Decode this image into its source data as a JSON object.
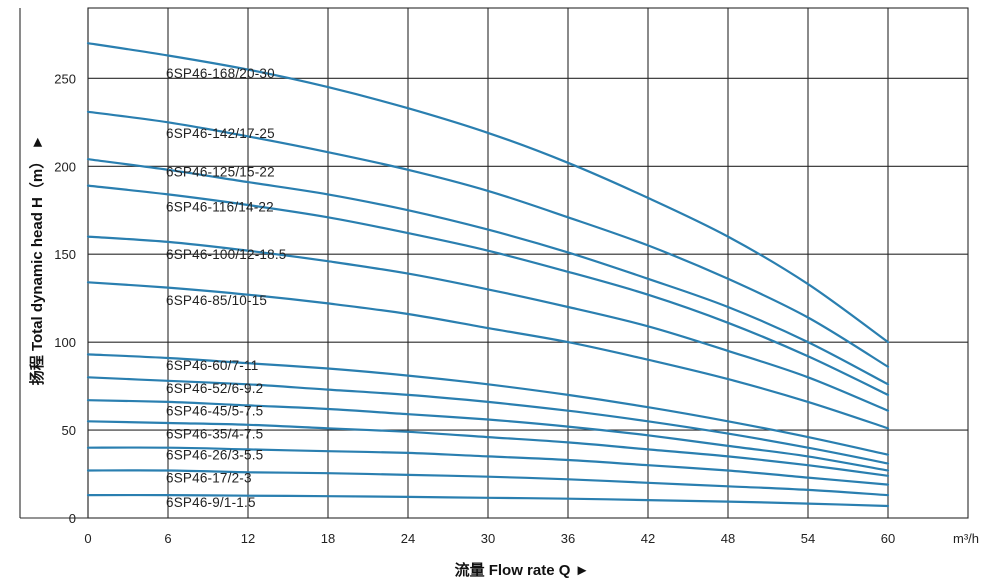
{
  "chart_data": {
    "type": "line",
    "title": "",
    "xlabel": "流量 Flow rate Q ►",
    "ylabel": "扬程 Total dynamic head H（m） ►",
    "x_unit": "m³/h",
    "xlim": [
      0,
      66
    ],
    "ylim": [
      0,
      290
    ],
    "x_ticks": [
      0,
      6,
      12,
      18,
      24,
      30,
      36,
      42,
      48,
      54,
      60
    ],
    "y_ticks": [
      0,
      50,
      100,
      150,
      200,
      250
    ],
    "grid": true,
    "colors": {
      "curve": "#2a7fb0",
      "grid": "#2a2a2a"
    },
    "series": [
      {
        "name": "6SP46-168/20-30",
        "x": [
          0,
          6,
          12,
          18,
          24,
          30,
          36,
          42,
          48,
          54,
          60
        ],
        "y": [
          270,
          263,
          255,
          245,
          233,
          219,
          202,
          182,
          160,
          133,
          100
        ]
      },
      {
        "name": "6SP46-142/17-25",
        "x": [
          0,
          6,
          12,
          18,
          24,
          30,
          36,
          42,
          48,
          54,
          60
        ],
        "y": [
          231,
          225,
          217,
          208,
          198,
          186,
          171,
          155,
          136,
          114,
          86
        ]
      },
      {
        "name": "6SP46-125/15-22",
        "x": [
          0,
          6,
          12,
          18,
          24,
          30,
          36,
          42,
          48,
          54,
          60
        ],
        "y": [
          204,
          198,
          191,
          184,
          175,
          164,
          151,
          136,
          120,
          100,
          76
        ]
      },
      {
        "name": "6SP46-116/14-22",
        "x": [
          0,
          6,
          12,
          18,
          24,
          30,
          36,
          42,
          48,
          54,
          60
        ],
        "y": [
          189,
          184,
          178,
          171,
          162,
          152,
          140,
          127,
          111,
          92,
          70
        ]
      },
      {
        "name": "6SP46-100/12-18.5",
        "x": [
          0,
          6,
          12,
          18,
          24,
          30,
          36,
          42,
          48,
          54,
          60
        ],
        "y": [
          160,
          157,
          152,
          146,
          139,
          130,
          120,
          109,
          95,
          80,
          61
        ]
      },
      {
        "name": "6SP46-85/10-15",
        "x": [
          0,
          6,
          12,
          18,
          24,
          30,
          36,
          42,
          48,
          54,
          60
        ],
        "y": [
          134,
          131,
          127,
          122,
          116,
          108,
          100,
          90,
          79,
          66,
          51
        ]
      },
      {
        "name": "6SP46-60/7-11",
        "x": [
          0,
          6,
          12,
          18,
          24,
          30,
          36,
          42,
          48,
          54,
          60
        ],
        "y": [
          93,
          91,
          88,
          85,
          81,
          76,
          70,
          63,
          55,
          46,
          36
        ]
      },
      {
        "name": "6SP46-52/6-9.2",
        "x": [
          0,
          6,
          12,
          18,
          24,
          30,
          36,
          42,
          48,
          54,
          60
        ],
        "y": [
          80,
          78,
          76,
          73,
          70,
          66,
          61,
          55,
          48,
          40,
          31
        ]
      },
      {
        "name": "6SP46-45/5-7.5",
        "x": [
          0,
          6,
          12,
          18,
          24,
          30,
          36,
          42,
          48,
          54,
          60
        ],
        "y": [
          67,
          66,
          64,
          62,
          59,
          56,
          52,
          47,
          41,
          35,
          27
        ]
      },
      {
        "name": "6SP46-35/4-7.5",
        "x": [
          0,
          6,
          12,
          18,
          24,
          30,
          36,
          42,
          48,
          54,
          60
        ],
        "y": [
          55,
          54,
          53,
          51,
          49,
          46,
          43,
          39,
          35,
          30,
          24
        ]
      },
      {
        "name": "6SP46-26/3-5.5",
        "x": [
          0,
          6,
          12,
          18,
          24,
          30,
          36,
          42,
          48,
          54,
          60
        ],
        "y": [
          40,
          40,
          39,
          38,
          37,
          35,
          33,
          30,
          27,
          23,
          19
        ]
      },
      {
        "name": "6SP46-17/2-3",
        "x": [
          0,
          6,
          12,
          18,
          24,
          30,
          36,
          42,
          48,
          54,
          60
        ],
        "y": [
          27,
          27,
          26,
          25.5,
          24.5,
          23.5,
          22,
          20,
          18,
          16,
          13
        ]
      },
      {
        "name": "6SP46-9/1-1.5",
        "x": [
          0,
          6,
          12,
          18,
          24,
          30,
          36,
          42,
          48,
          54,
          60
        ],
        "y": [
          13,
          13,
          12.7,
          12.4,
          12,
          11.5,
          11,
          10.2,
          9.3,
          8.2,
          6.8
        ]
      }
    ],
    "curve_labels": [
      {
        "text": "6SP46-168/20-30",
        "y": 253
      },
      {
        "text": "6SP46-142/17-25",
        "y": 219
      },
      {
        "text": "6SP46-125/15-22",
        "y": 197
      },
      {
        "text": "6SP46-116/14-22",
        "y": 177
      },
      {
        "text": "6SP46-100/12-18.5",
        "y": 150
      },
      {
        "text": "6SP46-85/10-15",
        "y": 124
      },
      {
        "text": "6SP46-60/7-11",
        "y": 87
      },
      {
        "text": "6SP46-52/6-9.2",
        "y": 74
      },
      {
        "text": "6SP46-45/5-7.5",
        "y": 61
      },
      {
        "text": "6SP46-35/4-7.5",
        "y": 48
      },
      {
        "text": "6SP46-26/3-5.5",
        "y": 36
      },
      {
        "text": "6SP46-17/2-3",
        "y": 23
      },
      {
        "text": "6SP46-9/1-1.5",
        "y": 9
      }
    ]
  }
}
